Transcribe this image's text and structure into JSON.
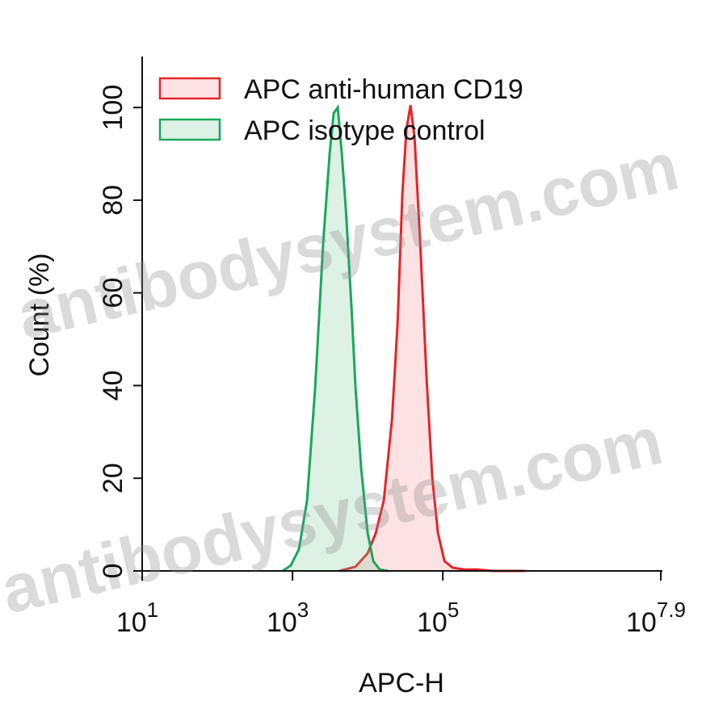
{
  "chart_data": {
    "type": "histogram-overlay",
    "xlabel": "APC-H",
    "ylabel": "Count (%)",
    "xscale": "log",
    "xlim": [
      10,
      79432823
    ],
    "xticks": [
      {
        "value": 10,
        "label": "10",
        "sup": "1"
      },
      {
        "value": 1000,
        "label": "10",
        "sup": "3"
      },
      {
        "value": 100000,
        "label": "10",
        "sup": "5"
      },
      {
        "value": 79432823,
        "label": "10",
        "sup": "7.9"
      }
    ],
    "ylim": [
      0,
      111
    ],
    "yticks": [
      0,
      20,
      40,
      60,
      80,
      100
    ],
    "legend": "upper left",
    "watermark": "antibodysystem.com",
    "series": [
      {
        "name": "APC anti-human CD19",
        "color": "#e8232a",
        "fill": "rgba(245,150,155,0.28)",
        "x": [
          4207,
          6902,
          10000,
          12823,
          16406,
          21038,
          25003,
          28973,
          32810,
          37154,
          42073,
          50003,
          60954,
          72444,
          86099,
          105196,
          134586,
          194984,
          283139,
          464515,
          1250259
        ],
        "values": [
          0,
          0.9,
          3.8,
          8.2,
          15.2,
          32.6,
          53.5,
          81.4,
          95.3,
          100.5,
          93.4,
          70.7,
          41.1,
          20.2,
          8.2,
          2.1,
          0.7,
          0.3,
          0.3,
          0,
          0
        ]
      },
      {
        "name": "APC isotype control",
        "color": "#1aa85a",
        "fill": "rgba(120,200,150,0.25)",
        "x": [
          743,
          951,
          1219,
          1563,
          2000,
          2564,
          3126,
          3532,
          4000,
          4529,
          5129,
          6095,
          6902,
          8204,
          10000,
          11885,
          14488,
          18578
        ],
        "values": [
          0,
          1.2,
          4.7,
          15.2,
          39.5,
          70.9,
          90.1,
          98.8,
          100,
          90.1,
          77.9,
          57.0,
          39.5,
          22.1,
          8.2,
          2.1,
          0.3,
          0
        ]
      }
    ]
  }
}
